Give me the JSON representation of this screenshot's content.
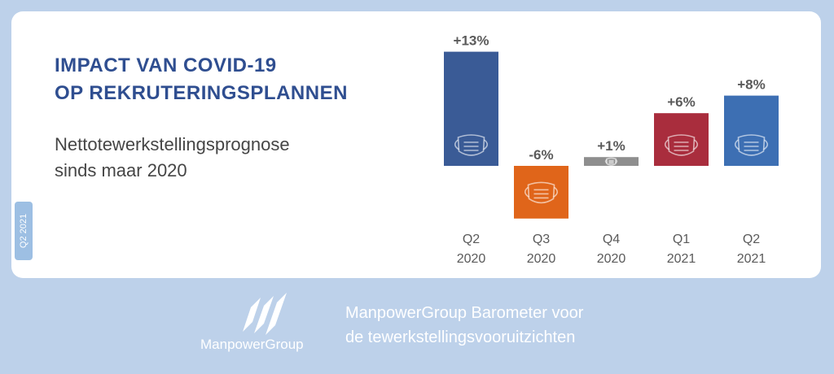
{
  "side_tag": "Q2 2021",
  "title": {
    "line1": "IMPACT VAN COVID-19",
    "line2": "OP REKRUTERINGSPLANNEN"
  },
  "subtitle": {
    "line1": "Nettotewerkstellingsprognose",
    "line2": "sinds maar 2020"
  },
  "footer": {
    "brand": "ManpowerGroup",
    "line1": "ManpowerGroup Barometer voor",
    "line2": "de tewerkstellingsvooruitzichten"
  },
  "colors": {
    "background": "#bdd1ea",
    "title": "#2f4e90",
    "label": "#5a5a5a"
  },
  "chart_data": {
    "type": "bar",
    "categories": [
      [
        "Q2",
        "2020"
      ],
      [
        "Q3",
        "2020"
      ],
      [
        "Q4",
        "2020"
      ],
      [
        "Q1",
        "2021"
      ],
      [
        "Q2",
        "2021"
      ]
    ],
    "values": [
      13,
      -6,
      1,
      6,
      8
    ],
    "value_labels": [
      "+13%",
      "-6%",
      "+1%",
      "+6%",
      "+8%"
    ],
    "bar_colors": [
      "#3a5b96",
      "#e0651a",
      "#8e8e8e",
      "#a92d3d",
      "#3d6fb3"
    ],
    "icon": "face-mask-icon",
    "ylim": [
      -6,
      13
    ]
  }
}
